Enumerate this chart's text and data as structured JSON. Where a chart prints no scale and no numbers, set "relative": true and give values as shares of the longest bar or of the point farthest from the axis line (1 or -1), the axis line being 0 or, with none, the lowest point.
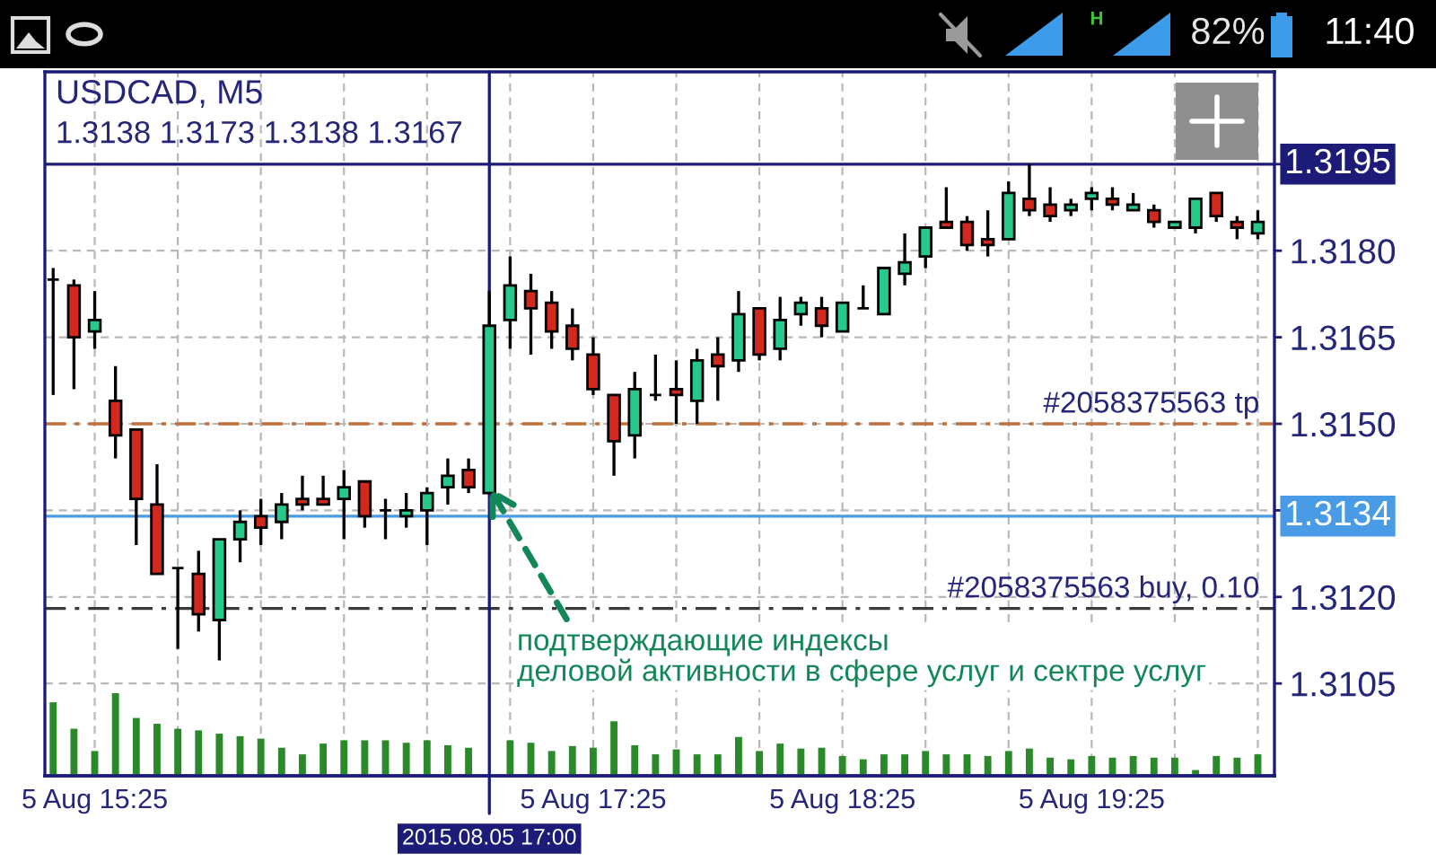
{
  "chart_data": [
    {
      "type": "candlestick",
      "title": "USDCAD, M5",
      "subtitle": "1.3138 1.3173 1.3138 1.3167",
      "x": [
        "2015-08-05T15:15",
        "2015-08-05T15:20",
        "2015-08-05T15:25",
        "2015-08-05T15:30",
        "2015-08-05T15:35",
        "2015-08-05T15:40",
        "2015-08-05T15:45",
        "2015-08-05T15:50",
        "2015-08-05T15:55",
        "2015-08-05T16:00",
        "2015-08-05T16:05",
        "2015-08-05T16:10",
        "2015-08-05T16:15",
        "2015-08-05T16:20",
        "2015-08-05T16:25",
        "2015-08-05T16:30",
        "2015-08-05T16:35",
        "2015-08-05T16:40",
        "2015-08-05T16:45",
        "2015-08-05T16:50",
        "2015-08-05T16:55",
        "2015-08-05T17:00",
        "2015-08-05T17:05",
        "2015-08-05T17:10",
        "2015-08-05T17:15",
        "2015-08-05T17:20",
        "2015-08-05T17:25",
        "2015-08-05T17:30",
        "2015-08-05T17:35",
        "2015-08-05T17:40",
        "2015-08-05T17:45",
        "2015-08-05T17:50",
        "2015-08-05T17:55",
        "2015-08-05T18:00",
        "2015-08-05T18:05",
        "2015-08-05T18:10",
        "2015-08-05T18:15",
        "2015-08-05T18:20",
        "2015-08-05T18:25",
        "2015-08-05T18:30",
        "2015-08-05T18:35",
        "2015-08-05T18:40",
        "2015-08-05T18:45",
        "2015-08-05T18:50",
        "2015-08-05T18:55",
        "2015-08-05T19:00",
        "2015-08-05T19:05",
        "2015-08-05T19:10",
        "2015-08-05T19:15",
        "2015-08-05T19:20",
        "2015-08-05T19:25",
        "2015-08-05T19:30",
        "2015-08-05T19:35",
        "2015-08-05T19:40",
        "2015-08-05T19:45",
        "2015-08-05T19:50",
        "2015-08-05T19:55",
        "2015-08-05T20:00",
        "2015-08-05T20:05"
      ],
      "ohlc": [
        [
          1.3175,
          1.3177,
          1.3155,
          1.3175
        ],
        [
          1.3174,
          1.3175,
          1.3156,
          1.3165
        ],
        [
          1.3166,
          1.3173,
          1.3163,
          1.3168
        ],
        [
          1.3154,
          1.316,
          1.3144,
          1.3148
        ],
        [
          1.3149,
          1.3149,
          1.3129,
          1.3137
        ],
        [
          1.3136,
          1.3143,
          1.3124,
          1.3124
        ],
        [
          1.3125,
          1.3125,
          1.3111,
          1.3125
        ],
        [
          1.3124,
          1.3128,
          1.3114,
          1.3117
        ],
        [
          1.3116,
          1.313,
          1.3109,
          1.313
        ],
        [
          1.313,
          1.3135,
          1.3126,
          1.3133
        ],
        [
          1.3134,
          1.3137,
          1.3129,
          1.3132
        ],
        [
          1.3133,
          1.3138,
          1.313,
          1.3136
        ],
        [
          1.3137,
          1.3141,
          1.3135,
          1.3136
        ],
        [
          1.3137,
          1.3141,
          1.3136,
          1.3136
        ],
        [
          1.3137,
          1.3142,
          1.313,
          1.3139
        ],
        [
          1.314,
          1.314,
          1.3132,
          1.3134
        ],
        [
          1.3135,
          1.3137,
          1.313,
          1.3135
        ],
        [
          1.3134,
          1.3138,
          1.3132,
          1.3135
        ],
        [
          1.3135,
          1.3139,
          1.3129,
          1.3138
        ],
        [
          1.3139,
          1.3144,
          1.3136,
          1.3141
        ],
        [
          1.3142,
          1.3144,
          1.3138,
          1.3139
        ],
        [
          1.3138,
          1.3173,
          1.3138,
          1.3167
        ],
        [
          1.3168,
          1.3179,
          1.3163,
          1.3174
        ],
        [
          1.3173,
          1.3176,
          1.3162,
          1.317
        ],
        [
          1.3171,
          1.3173,
          1.3163,
          1.3166
        ],
        [
          1.3167,
          1.317,
          1.3161,
          1.3163
        ],
        [
          1.3162,
          1.3165,
          1.3155,
          1.3156
        ],
        [
          1.3155,
          1.3155,
          1.3141,
          1.3147
        ],
        [
          1.3148,
          1.3159,
          1.3144,
          1.3156
        ],
        [
          1.3155,
          1.3162,
          1.3154,
          1.3155
        ],
        [
          1.3156,
          1.3161,
          1.315,
          1.3155
        ],
        [
          1.3154,
          1.3163,
          1.315,
          1.3161
        ],
        [
          1.3162,
          1.3165,
          1.3154,
          1.316
        ],
        [
          1.3161,
          1.3173,
          1.3159,
          1.3169
        ],
        [
          1.317,
          1.317,
          1.3161,
          1.3162
        ],
        [
          1.3163,
          1.3172,
          1.3161,
          1.3168
        ],
        [
          1.3169,
          1.3172,
          1.3167,
          1.3171
        ],
        [
          1.317,
          1.3172,
          1.3165,
          1.3167
        ],
        [
          1.3166,
          1.3171,
          1.3166,
          1.3171
        ],
        [
          1.317,
          1.3174,
          1.317,
          1.317
        ],
        [
          1.3169,
          1.3177,
          1.3169,
          1.3177
        ],
        [
          1.3176,
          1.3183,
          1.3174,
          1.3178
        ],
        [
          1.3179,
          1.3184,
          1.3177,
          1.3184
        ],
        [
          1.3185,
          1.3191,
          1.3184,
          1.3184
        ],
        [
          1.3185,
          1.3186,
          1.318,
          1.3181
        ],
        [
          1.3182,
          1.3187,
          1.3179,
          1.3181
        ],
        [
          1.3182,
          1.3192,
          1.3182,
          1.319
        ],
        [
          1.3189,
          1.3195,
          1.3186,
          1.3187
        ],
        [
          1.3188,
          1.3191,
          1.3185,
          1.3186
        ],
        [
          1.3187,
          1.3189,
          1.3186,
          1.3188
        ],
        [
          1.3189,
          1.3191,
          1.3187,
          1.319
        ],
        [
          1.3189,
          1.3191,
          1.3187,
          1.3188
        ],
        [
          1.3187,
          1.319,
          1.3187,
          1.3188
        ],
        [
          1.3187,
          1.3188,
          1.3184,
          1.3185
        ],
        [
          1.3184,
          1.3185,
          1.3184,
          1.3185
        ],
        [
          1.3184,
          1.3189,
          1.3183,
          1.3189
        ],
        [
          1.319,
          1.319,
          1.3185,
          1.3186
        ],
        [
          1.3185,
          1.3186,
          1.3182,
          1.3184
        ],
        [
          1.3183,
          1.3187,
          1.3182,
          1.3185
        ]
      ],
      "colors": [
        "#000000",
        "#d2281e",
        "#26c88c",
        "#d2281e",
        "#d2281e",
        "#d2281e",
        "#000000",
        "#d2281e",
        "#26c88c",
        "#26c88c",
        "#d2281e",
        "#26c88c",
        "#d2281e",
        "#d2281e",
        "#26c88c",
        "#d2281e",
        "#000000",
        "#26c88c",
        "#26c88c",
        "#26c88c",
        "#d2281e",
        "#26c88c",
        "#26c88c",
        "#d2281e",
        "#d2281e",
        "#d2281e",
        "#d2281e",
        "#d2281e",
        "#26c88c",
        "#000000",
        "#d2281e",
        "#26c88c",
        "#d2281e",
        "#26c88c",
        "#d2281e",
        "#26c88c",
        "#26c88c",
        "#d2281e",
        "#26c88c",
        "#000000",
        "#26c88c",
        "#26c88c",
        "#26c88c",
        "#d2281e",
        "#d2281e",
        "#d2281e",
        "#26c88c",
        "#d2281e",
        "#d2281e",
        "#26c88c",
        "#26c88c",
        "#d2281e",
        "#26c88c",
        "#d2281e",
        "#26c88c",
        "#26c88c",
        "#d2281e",
        "#d2281e",
        "#26c88c"
      ],
      "xlim": [
        "2015-08-05T15:13",
        "2015-08-05T20:09"
      ],
      "xticks": [
        {
          "value": "2015-08-05T15:25",
          "label": "5 Aug 15:25"
        },
        {
          "value": "2015-08-05T15:45",
          "label": null
        },
        {
          "value": "2015-08-05T16:05",
          "label": null
        },
        {
          "value": "2015-08-05T16:25",
          "label": null
        },
        {
          "value": "2015-08-05T16:45",
          "label": null
        },
        {
          "value": "2015-08-05T17:05",
          "label": null
        },
        {
          "value": "2015-08-05T17:25",
          "label": "5 Aug 17:25"
        },
        {
          "value": "2015-08-05T17:45",
          "label": null
        },
        {
          "value": "2015-08-05T18:05",
          "label": null
        },
        {
          "value": "2015-08-05T18:25",
          "label": "5 Aug 18:25"
        },
        {
          "value": "2015-08-05T18:45",
          "label": null
        },
        {
          "value": "2015-08-05T19:05",
          "label": null
        },
        {
          "value": "2015-08-05T19:25",
          "label": "5 Aug 19:25"
        },
        {
          "value": "2015-08-05T19:45",
          "label": null
        },
        {
          "value": "2015-08-05T20:05",
          "label": null
        }
      ],
      "ylim": [
        1.3089,
        1.3211
      ],
      "yticks": [
        1.3105,
        {
          "value": 1.312,
          "label": "1.3120"
        },
        {
          "value": 1.3135,
          "label": null
        },
        {
          "value": 1.315,
          "label": "1.3150"
        },
        1.3165,
        {
          "value": 1.318,
          "label": "1.3180"
        },
        {
          "value": 1.3195,
          "label": null
        }
      ],
      "grid": true,
      "ref_lines": [
        {
          "axis": "y",
          "value": 1.315,
          "label": "#2058375563 tp",
          "color": "#c0703c",
          "line_style": "dashdot"
        },
        {
          "axis": "y",
          "value": 1.3118,
          "label": "#2058375563 buy, 0.10",
          "color": "#3a3a3a",
          "line_style": "dashdot"
        },
        {
          "axis": "y",
          "value": 1.3134,
          "label": "1.3134",
          "color": "#4a9be6",
          "line_style": "solid"
        },
        {
          "axis": "y",
          "value": 1.3195,
          "label": "1.3195",
          "color": "#1c1c78",
          "line_style": "solid"
        },
        {
          "axis": "x",
          "value": "2015-08-05T17:00",
          "label": "2015.08.05 17:00",
          "color": "#1c1c78",
          "line_style": "solid"
        }
      ],
      "annotations": [
        {
          "text": "подтверждающие индексы\nделовой активности в сфере услуг и сектре услуг",
          "x": "2015-08-05T17:00",
          "y": 1.3139
        },
        "H",
        "82%",
        "11:40"
      ]
    },
    {
      "type": "bar",
      "relative": true,
      "color": "#2a8a2a",
      "x": [
        "2015-08-05T15:15",
        "2015-08-05T15:20",
        "2015-08-05T15:25",
        "2015-08-05T15:30",
        "2015-08-05T15:35",
        "2015-08-05T15:40",
        "2015-08-05T15:45",
        "2015-08-05T15:50",
        "2015-08-05T15:55",
        "2015-08-05T16:00",
        "2015-08-05T16:05",
        "2015-08-05T16:10",
        "2015-08-05T16:15",
        "2015-08-05T16:20",
        "2015-08-05T16:25",
        "2015-08-05T16:30",
        "2015-08-05T16:35",
        "2015-08-05T16:40",
        "2015-08-05T16:45",
        "2015-08-05T16:50",
        "2015-08-05T16:55",
        "2015-08-05T17:00",
        "2015-08-05T17:05",
        "2015-08-05T17:10",
        "2015-08-05T17:15",
        "2015-08-05T17:20",
        "2015-08-05T17:25",
        "2015-08-05T17:30",
        "2015-08-05T17:35",
        "2015-08-05T17:40",
        "2015-08-05T17:45",
        "2015-08-05T17:50",
        "2015-08-05T17:55",
        "2015-08-05T18:00",
        "2015-08-05T18:05",
        "2015-08-05T18:10",
        "2015-08-05T18:15",
        "2015-08-05T18:20",
        "2015-08-05T18:25",
        "2015-08-05T18:30",
        "2015-08-05T18:35",
        "2015-08-05T18:40",
        "2015-08-05T18:45",
        "2015-08-05T18:50",
        "2015-08-05T18:55",
        "2015-08-05T19:00",
        "2015-08-05T19:05",
        "2015-08-05T19:10",
        "2015-08-05T19:15",
        "2015-08-05T19:20",
        "2015-08-05T19:25",
        "2015-08-05T19:30",
        "2015-08-05T19:35",
        "2015-08-05T19:40",
        "2015-08-05T19:45",
        "2015-08-05T19:50",
        "2015-08-05T19:55",
        "2015-08-05T20:00",
        "2015-08-05T20:05"
      ],
      "values": [
        0.89,
        0.57,
        0.3,
        1.0,
        0.7,
        0.63,
        0.57,
        0.55,
        0.51,
        0.48,
        0.45,
        0.34,
        0.26,
        0.39,
        0.43,
        0.43,
        0.43,
        0.4,
        0.43,
        0.37,
        0.34,
        null,
        0.43,
        0.4,
        0.3,
        0.36,
        0.34,
        0.66,
        0.37,
        0.26,
        0.32,
        0.26,
        0.26,
        0.47,
        0.3,
        0.39,
        0.33,
        0.34,
        0.24,
        0.2,
        0.26,
        0.26,
        0.3,
        0.26,
        0.26,
        0.24,
        0.3,
        0.33,
        0.22,
        0.2,
        0.24,
        0.22,
        0.24,
        0.22,
        0.22,
        0.07,
        0.24,
        0.22,
        0.26
      ],
      "xlim": [
        "2015-08-05T15:13",
        "2015-08-05T20:09"
      ],
      "tick_labels": false
    }
  ]
}
